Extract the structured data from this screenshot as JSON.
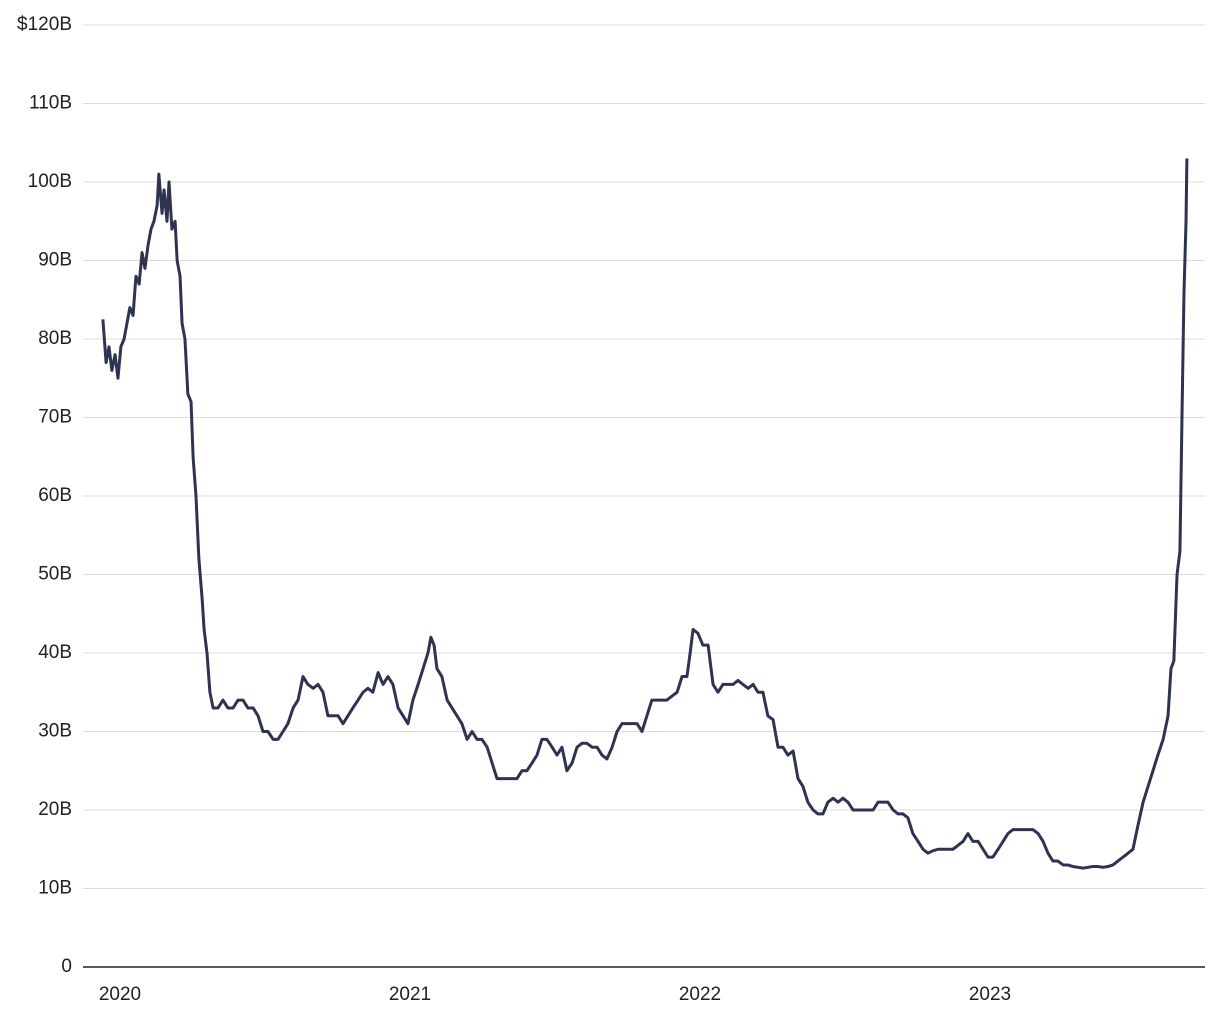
{
  "chart_data": {
    "type": "line",
    "color": "#2e3350",
    "grid": true,
    "xlim": [
      2019.8724,
      2023.7414
    ],
    "xticks": [
      2020,
      2021,
      2022,
      2023
    ],
    "ylim": [
      0,
      120
    ],
    "yticks": [
      0,
      {
        "value": 10,
        "label": "10B"
      },
      {
        "value": 20,
        "label": "20B"
      },
      {
        "value": 30,
        "label": "30B"
      },
      {
        "value": 40,
        "label": "40B"
      },
      {
        "value": 50,
        "label": "50B"
      },
      {
        "value": 60,
        "label": "60B"
      },
      {
        "value": 70,
        "label": "70B"
      },
      {
        "value": 80,
        "label": "80B"
      },
      {
        "value": 90,
        "label": "90B"
      },
      {
        "value": 100,
        "label": "100B"
      },
      {
        "value": 110,
        "label": "110B"
      },
      {
        "value": 120,
        "label": "$120B"
      }
    ],
    "x": [
      2019.941,
      2019.952,
      2019.962,
      2019.972,
      2019.983,
      2019.993,
      2020.003,
      2020.014,
      2020.024,
      2020.034,
      2020.045,
      2020.055,
      2020.066,
      2020.076,
      2020.086,
      2020.097,
      2020.107,
      2020.117,
      2020.128,
      2020.134,
      2020.145,
      2020.152,
      2020.162,
      2020.169,
      2020.179,
      2020.19,
      2020.197,
      2020.207,
      2020.214,
      2020.224,
      2020.234,
      2020.245,
      2020.252,
      2020.262,
      2020.272,
      2020.283,
      2020.29,
      2020.3,
      2020.31,
      2020.321,
      2020.338,
      2020.355,
      2020.372,
      2020.39,
      2020.407,
      2020.424,
      2020.441,
      2020.459,
      2020.476,
      2020.493,
      2020.51,
      2020.528,
      2020.545,
      2020.562,
      2020.579,
      2020.597,
      2020.614,
      2020.631,
      2020.648,
      2020.666,
      2020.683,
      2020.7,
      2020.717,
      2020.734,
      2020.752,
      2020.769,
      2020.786,
      2020.803,
      2020.821,
      2020.838,
      2020.855,
      2020.872,
      2020.89,
      2020.907,
      2020.924,
      2020.941,
      2020.959,
      2020.976,
      2020.993,
      2021.01,
      2021.028,
      2021.045,
      2021.062,
      2021.072,
      2021.083,
      2021.093,
      2021.11,
      2021.128,
      2021.145,
      2021.162,
      2021.179,
      2021.197,
      2021.214,
      2021.231,
      2021.248,
      2021.266,
      2021.283,
      2021.3,
      2021.317,
      2021.334,
      2021.352,
      2021.369,
      2021.386,
      2021.403,
      2021.421,
      2021.438,
      2021.455,
      2021.472,
      2021.49,
      2021.507,
      2021.524,
      2021.541,
      2021.559,
      2021.576,
      2021.593,
      2021.61,
      2021.628,
      2021.645,
      2021.662,
      2021.679,
      2021.697,
      2021.714,
      2021.731,
      2021.748,
      2021.766,
      2021.783,
      2021.8,
      2021.817,
      2021.834,
      2021.852,
      2021.869,
      2021.886,
      2021.903,
      2021.921,
      2021.938,
      2021.955,
      2021.966,
      2021.976,
      2021.993,
      2022.01,
      2022.028,
      2022.045,
      2022.062,
      2022.079,
      2022.097,
      2022.114,
      2022.131,
      2022.148,
      2022.166,
      2022.183,
      2022.2,
      2022.217,
      2022.234,
      2022.252,
      2022.269,
      2022.286,
      2022.303,
      2022.321,
      2022.338,
      2022.355,
      2022.372,
      2022.39,
      2022.407,
      2022.424,
      2022.441,
      2022.459,
      2022.476,
      2022.493,
      2022.51,
      2022.528,
      2022.545,
      2022.562,
      2022.579,
      2022.597,
      2022.614,
      2022.631,
      2022.648,
      2022.666,
      2022.683,
      2022.7,
      2022.717,
      2022.734,
      2022.752,
      2022.769,
      2022.786,
      2022.803,
      2022.821,
      2022.838,
      2022.855,
      2022.872,
      2022.89,
      2022.907,
      2022.924,
      2022.941,
      2022.959,
      2022.976,
      2022.993,
      2023.01,
      2023.028,
      2023.045,
      2023.062,
      2023.079,
      2023.097,
      2023.114,
      2023.131,
      2023.148,
      2023.166,
      2023.183,
      2023.2,
      2023.217,
      2023.234,
      2023.252,
      2023.269,
      2023.286,
      2023.303,
      2023.321,
      2023.338,
      2023.355,
      2023.372,
      2023.39,
      2023.407,
      2023.424,
      2023.441,
      2023.459,
      2023.476,
      2023.493,
      2023.51,
      2023.528,
      2023.545,
      2023.562,
      2023.579,
      2023.597,
      2023.614,
      2023.624,
      2023.634,
      2023.645,
      2023.655,
      2023.662,
      2023.669,
      2023.676,
      2023.679
    ],
    "values": [
      82.5,
      77,
      79,
      76,
      78,
      75,
      79,
      80,
      82,
      84,
      83,
      88,
      87,
      91,
      89,
      92,
      94,
      95,
      97,
      101,
      96,
      99,
      95,
      100,
      94,
      95,
      90,
      88,
      82,
      80,
      73,
      72,
      65,
      60,
      52,
      47,
      43,
      40,
      35,
      33,
      33,
      34,
      33,
      33,
      34,
      34,
      33,
      33,
      32,
      30,
      30,
      29,
      29,
      30,
      31,
      33,
      34,
      37,
      36,
      35.5,
      36,
      35,
      32,
      32,
      32,
      31,
      32,
      33,
      34,
      35,
      35.5,
      35,
      37.5,
      36,
      37,
      36,
      33,
      32,
      31,
      34,
      36,
      38,
      40,
      42,
      41,
      38,
      37,
      34,
      33,
      32,
      31,
      29,
      30,
      29,
      29,
      28,
      26,
      24,
      24,
      24,
      24,
      24,
      25,
      25,
      26,
      27,
      29,
      29,
      28,
      27,
      28,
      25,
      26,
      28,
      28.5,
      28.5,
      28,
      28,
      27,
      26.5,
      28,
      30,
      31,
      31,
      31,
      31,
      30,
      32,
      34,
      34,
      34,
      34,
      34.5,
      35,
      37,
      37,
      40,
      43,
      42.5,
      41,
      41,
      36,
      35,
      36,
      36,
      36,
      36.5,
      36,
      35.5,
      36,
      35,
      35,
      32,
      31.5,
      28,
      28,
      27,
      27.5,
      24,
      23,
      21,
      20,
      19.5,
      19.5,
      21,
      21.5,
      21,
      21.5,
      21,
      20,
      20,
      20,
      20,
      20,
      21,
      21,
      21,
      20,
      19.5,
      19.5,
      19,
      17,
      16,
      15,
      14.5,
      14.8,
      15,
      15,
      15,
      15,
      15.5,
      16,
      17,
      16,
      16,
      15,
      14,
      14,
      15,
      16,
      17,
      17.5,
      17.5,
      17.5,
      17.5,
      17.5,
      17,
      16,
      14.5,
      13.5,
      13.5,
      13,
      13,
      12.8,
      12.7,
      12.6,
      12.7,
      12.8,
      12.8,
      12.7,
      12.8,
      13,
      13.5,
      14,
      14.5,
      15,
      18,
      21,
      23,
      25,
      27,
      29,
      32,
      38,
      39,
      50,
      53,
      70,
      86,
      95,
      103
    ]
  }
}
